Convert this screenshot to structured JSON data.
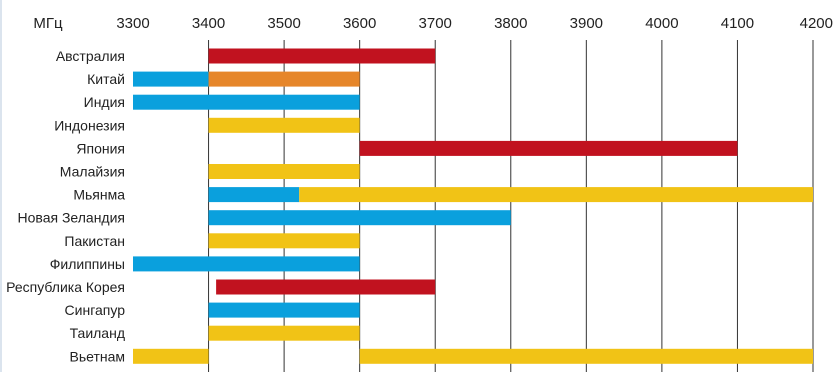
{
  "chart_data": {
    "type": "bar",
    "orientation": "horizontal-range",
    "unit_label": "МГц",
    "xlim": [
      3300,
      4200
    ],
    "x_ticks": [
      3300,
      3400,
      3500,
      3600,
      3700,
      3800,
      3900,
      4000,
      4100,
      4200
    ],
    "grid": true,
    "colors": {
      "red": "#c1121f",
      "blue": "#0aa0dd",
      "orange": "#e6862a",
      "yellow": "#f1c316"
    },
    "categories": [
      "Австралия",
      "Китай",
      "Индия",
      "Индонезия",
      "Япония",
      "Малайзия",
      "Мьянма",
      "Новая Зеландия",
      "Пакистан",
      "Филиппины",
      "Республика Корея",
      "Сингапур",
      "Таиланд",
      "Вьетнам"
    ],
    "segments": [
      {
        "category": "Австралия",
        "start": 3400,
        "end": 3700,
        "color": "red"
      },
      {
        "category": "Китай",
        "start": 3300,
        "end": 3400,
        "color": "blue"
      },
      {
        "category": "Китай",
        "start": 3400,
        "end": 3600,
        "color": "orange"
      },
      {
        "category": "Индия",
        "start": 3300,
        "end": 3600,
        "color": "blue"
      },
      {
        "category": "Индонезия",
        "start": 3400,
        "end": 3600,
        "color": "yellow"
      },
      {
        "category": "Япония",
        "start": 3600,
        "end": 4100,
        "color": "red"
      },
      {
        "category": "Малайзия",
        "start": 3400,
        "end": 3600,
        "color": "yellow"
      },
      {
        "category": "Мьянма",
        "start": 3400,
        "end": 3520,
        "color": "blue"
      },
      {
        "category": "Мьянма",
        "start": 3520,
        "end": 4200,
        "color": "yellow"
      },
      {
        "category": "Новая Зеландия",
        "start": 3400,
        "end": 3800,
        "color": "blue"
      },
      {
        "category": "Пакистан",
        "start": 3400,
        "end": 3600,
        "color": "yellow"
      },
      {
        "category": "Филиппины",
        "start": 3300,
        "end": 3600,
        "color": "blue"
      },
      {
        "category": "Республика Корея",
        "start": 3410,
        "end": 3700,
        "color": "red"
      },
      {
        "category": "Сингапур",
        "start": 3400,
        "end": 3600,
        "color": "blue"
      },
      {
        "category": "Таиланд",
        "start": 3400,
        "end": 3600,
        "color": "yellow"
      },
      {
        "category": "Вьетнам",
        "start": 3300,
        "end": 3400,
        "color": "yellow"
      },
      {
        "category": "Вьетнам",
        "start": 3600,
        "end": 4200,
        "color": "yellow"
      }
    ]
  }
}
